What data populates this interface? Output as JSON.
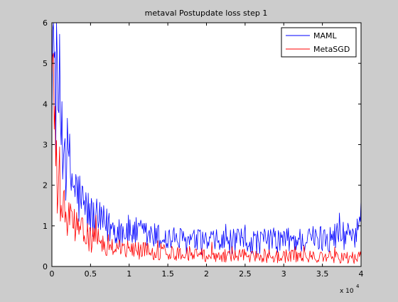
{
  "chart_data": {
    "type": "line",
    "title": "metaval Postupdate loss step 1",
    "xlabel": "",
    "ylabel": "",
    "x_multiplier_label": "x 10",
    "x_multiplier_exponent": "4",
    "xlim": [
      0,
      40000
    ],
    "ylim": [
      0,
      6
    ],
    "x_ticks": [
      0,
      5000,
      10000,
      15000,
      20000,
      25000,
      30000,
      35000,
      40000
    ],
    "x_tick_labels": [
      "0",
      "0.5",
      "1",
      "1.5",
      "2",
      "2.5",
      "3",
      "3.5",
      "4"
    ],
    "y_ticks": [
      0,
      1,
      2,
      3,
      4,
      5,
      6
    ],
    "y_tick_labels": [
      "0",
      "1",
      "2",
      "3",
      "4",
      "5",
      "6"
    ],
    "grid": false,
    "legend_position": "top-right",
    "x": [
      0,
      250,
      500,
      1000,
      1500,
      2000,
      2500,
      3000,
      3500,
      4000,
      5000,
      6000,
      7000,
      8000,
      9000,
      10000,
      12500,
      15000,
      17500,
      20000,
      22500,
      25000,
      27500,
      30000,
      32500,
      35000,
      37500,
      40000
    ],
    "series": [
      {
        "name": "MAML",
        "color": "#0000ff",
        "values": [
          5.8,
          5.3,
          4.6,
          4.0,
          3.2,
          2.6,
          2.2,
          1.9,
          1.7,
          1.5,
          1.25,
          1.1,
          1.0,
          0.95,
          0.9,
          0.85,
          0.75,
          0.68,
          0.62,
          0.6,
          0.6,
          0.62,
          0.62,
          0.65,
          0.65,
          0.7,
          0.78,
          0.85
        ]
      },
      {
        "name": "MetaSGD",
        "color": "#ff0000",
        "values": [
          5.5,
          4.0,
          2.3,
          1.6,
          1.35,
          1.2,
          1.1,
          1.0,
          0.9,
          0.8,
          0.7,
          0.62,
          0.55,
          0.5,
          0.45,
          0.42,
          0.38,
          0.35,
          0.32,
          0.3,
          0.28,
          0.27,
          0.26,
          0.25,
          0.24,
          0.23,
          0.22,
          0.22
        ]
      }
    ]
  }
}
